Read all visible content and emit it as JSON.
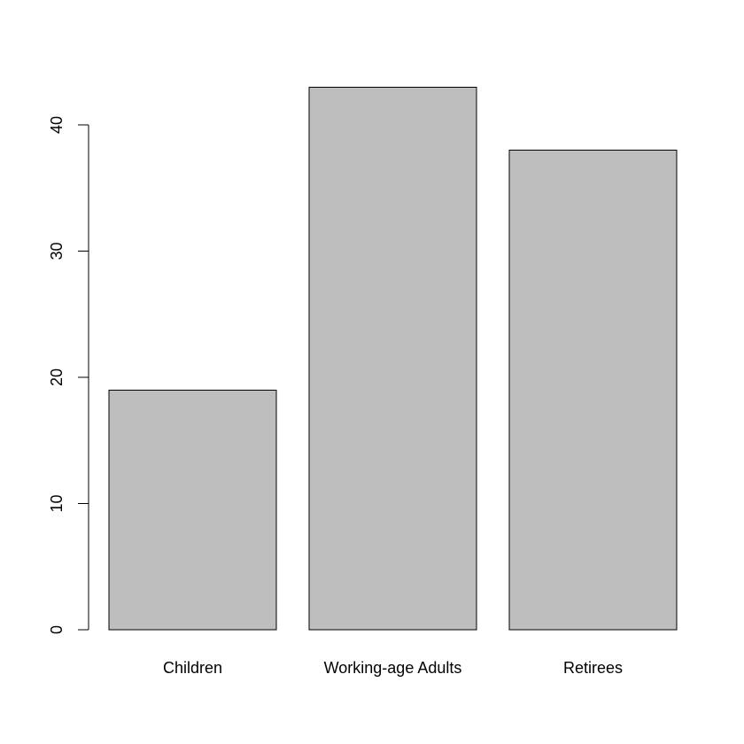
{
  "chart_data": {
    "type": "bar",
    "title": "",
    "xlabel": "",
    "ylabel": "",
    "categories": [
      "Children",
      "Working-age Adults",
      "Retirees"
    ],
    "values": [
      19,
      43,
      38
    ],
    "ylim": [
      0,
      40
    ],
    "yticks": [
      0,
      10,
      20,
      30,
      40
    ],
    "ytick_labels": [
      "0",
      "10",
      "20",
      "30",
      "40"
    ],
    "grid": false,
    "legend": "none",
    "bar_color": "#bebebe",
    "border_color": "#000000"
  }
}
